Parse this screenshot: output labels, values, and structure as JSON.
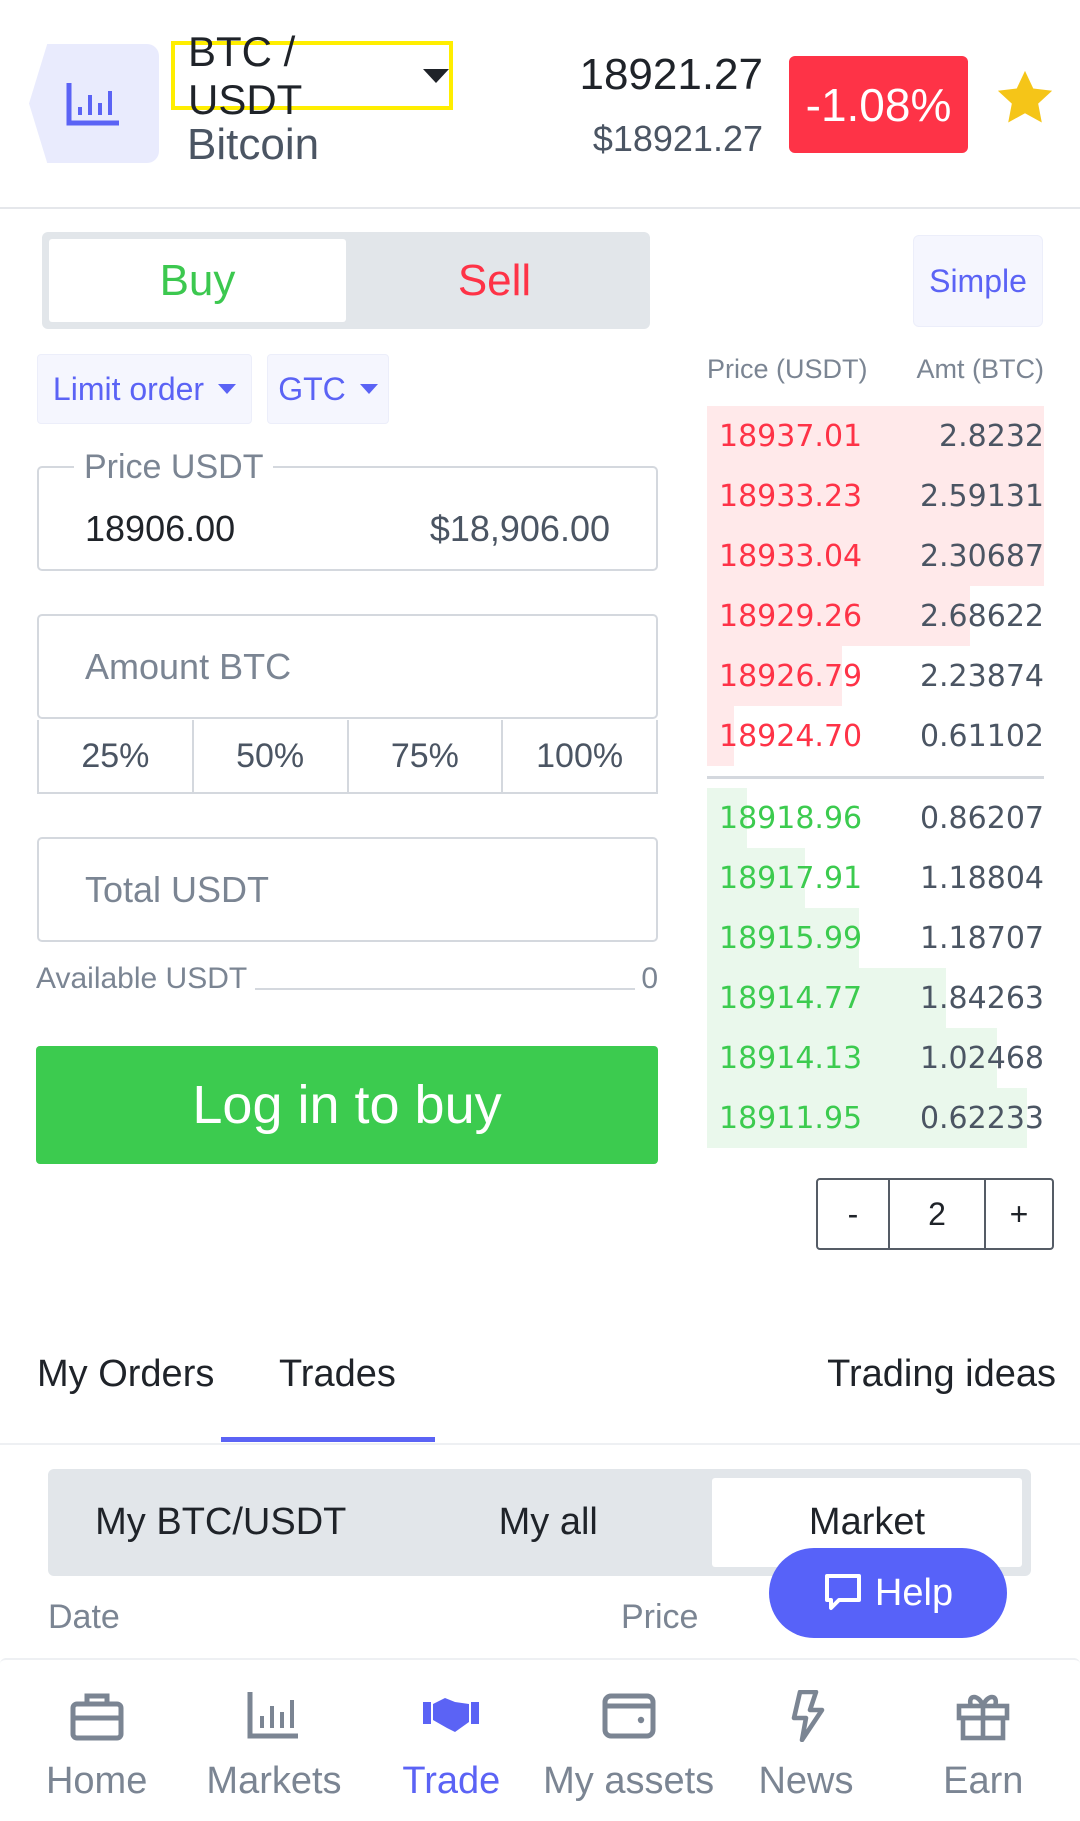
{
  "header": {
    "pair": "BTC / USDT",
    "coin_name": "Bitcoin",
    "last_price": "18921.27",
    "last_price_usd": "$18921.27",
    "change": "-1.08%",
    "favorite": true
  },
  "trade": {
    "buy_label": "Buy",
    "sell_label": "Sell",
    "simple_label": "Simple",
    "order_type": "Limit order",
    "time_in_force": "GTC",
    "price": {
      "label": "Price USDT",
      "value": "18906.00",
      "usd_value": "$18,906.00"
    },
    "amount": {
      "placeholder": "Amount BTC"
    },
    "percent_options": [
      "25%",
      "50%",
      "75%",
      "100%"
    ],
    "total": {
      "placeholder": "Total USDT"
    },
    "available": {
      "label": "Available USDT",
      "value": "0"
    },
    "login_button": "Log in to buy"
  },
  "orderbook": {
    "price_header": "Price (USDT)",
    "amount_header": "Amt (BTC)",
    "asks": [
      {
        "price": "18937.01",
        "amount": "2.8232",
        "depth": 1.0
      },
      {
        "price": "18933.23",
        "amount": "2.59131",
        "depth": 1.0
      },
      {
        "price": "18933.04",
        "amount": "2.30687",
        "depth": 1.0
      },
      {
        "price": "18929.26",
        "amount": "2.68622",
        "depth": 0.78
      },
      {
        "price": "18926.79",
        "amount": "2.23874",
        "depth": 0.4
      },
      {
        "price": "18924.70",
        "amount": "0.61102",
        "depth": 0.08
      }
    ],
    "bids": [
      {
        "price": "18918.96",
        "amount": "0.86207",
        "depth": 0.12
      },
      {
        "price": "18917.91",
        "amount": "1.18804",
        "depth": 0.29
      },
      {
        "price": "18915.99",
        "amount": "1.18707",
        "depth": 0.45
      },
      {
        "price": "18914.77",
        "amount": "1.84263",
        "depth": 0.71
      },
      {
        "price": "18914.13",
        "amount": "1.02468",
        "depth": 0.86
      },
      {
        "price": "18911.95",
        "amount": "0.62233",
        "depth": 0.95
      }
    ],
    "precision": {
      "minus": "-",
      "value": "2",
      "plus": "+"
    }
  },
  "tabs": {
    "items": [
      "My Orders",
      "Trades",
      "Trading ideas"
    ],
    "active": "Trades"
  },
  "trades": {
    "segments": [
      "My BTC/USDT",
      "My all",
      "Market"
    ],
    "active": "Market",
    "columns": {
      "date": "Date",
      "price": "Price"
    }
  },
  "help_label": "Help",
  "nav": {
    "items": [
      "Home",
      "Markets",
      "Trade",
      "My assets",
      "News",
      "Earn"
    ],
    "active": "Trade"
  },
  "colors": {
    "accent": "#5b63f5",
    "buy": "#3ccb4f",
    "sell": "#fe3347",
    "ask_bg": "#ffe9ea",
    "bid_bg": "#eaf8ec",
    "favorite": "#f5c518"
  }
}
